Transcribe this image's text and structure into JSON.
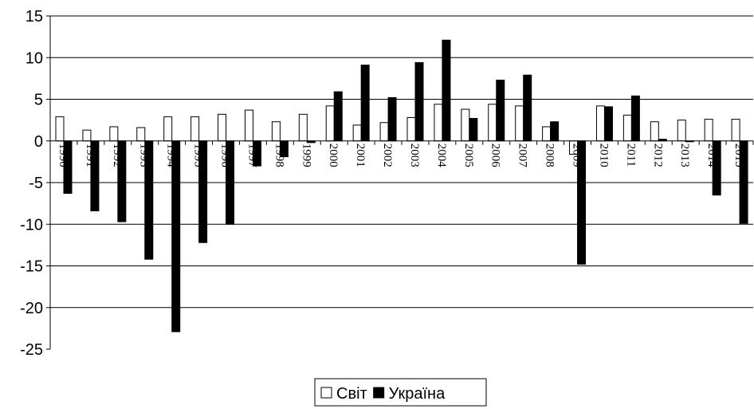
{
  "chart_data": {
    "type": "bar",
    "title": "",
    "xlabel": "",
    "ylabel": "",
    "ylim": [
      -25,
      15
    ],
    "yticks": [
      15,
      10,
      5,
      0,
      -5,
      -10,
      -15,
      -20,
      -25
    ],
    "grid": true,
    "legend_position": "bottom-center",
    "categories": [
      "1990",
      "1991",
      "1992",
      "1993",
      "1994",
      "1995",
      "1996",
      "1997",
      "1998",
      "1999",
      "2000",
      "2001",
      "2002",
      "2003",
      "2004",
      "2005",
      "2006",
      "2007",
      "2008",
      "2009",
      "2010",
      "2011",
      "2012",
      "2013",
      "2014",
      "2015"
    ],
    "series": [
      {
        "name": "Світ",
        "fill": "#ffffff",
        "stroke": "#000000",
        "values": [
          2.9,
          1.3,
          1.7,
          1.6,
          2.9,
          2.9,
          3.2,
          3.7,
          2.3,
          3.2,
          4.2,
          1.9,
          2.2,
          2.8,
          4.4,
          3.8,
          4.4,
          4.2,
          1.7,
          -1.6,
          4.2,
          3.1,
          2.3,
          2.5,
          2.6,
          2.6
        ]
      },
      {
        "name": "Україна",
        "fill": "#000000",
        "stroke": "#000000",
        "values": [
          -6.3,
          -8.4,
          -9.7,
          -14.2,
          -22.9,
          -12.2,
          -10.0,
          -3.0,
          -1.9,
          -0.2,
          5.9,
          9.1,
          5.2,
          9.4,
          12.1,
          2.7,
          7.3,
          7.9,
          2.3,
          -14.8,
          4.1,
          5.4,
          0.2,
          -0.1,
          -6.5,
          -9.9
        ]
      }
    ]
  }
}
